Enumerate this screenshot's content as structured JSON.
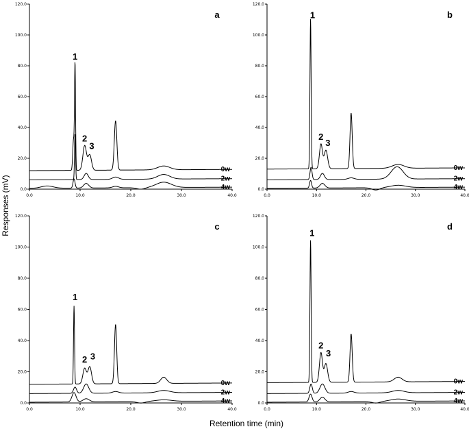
{
  "figure": {
    "ylabel": "Responses (mV)",
    "xlabel": "Retention time (min)"
  },
  "chart_data": [
    {
      "type": "line",
      "panel": "a",
      "xlim": [
        0,
        40
      ],
      "ylim": [
        0,
        120
      ],
      "x_ticks": [
        "0.0",
        "10.0",
        "20.0",
        "30.0",
        "40.0"
      ],
      "y_ticks": [
        "0.0",
        "20.0",
        "40.0",
        "60.0",
        "80.0",
        "100.0",
        "120.0"
      ],
      "series": [
        {
          "name": "0w",
          "baseline": 12,
          "peaks": [
            {
              "rt": 8.7,
              "h": 20,
              "w": 0.15
            },
            {
              "rt": 9.0,
              "h": 68,
              "w": 0.1
            },
            {
              "rt": 10.9,
              "h": 16,
              "w": 0.35
            },
            {
              "rt": 11.9,
              "h": 10,
              "w": 0.35
            },
            {
              "rt": 17.0,
              "h": 32,
              "w": 0.25
            },
            {
              "rt": 26.5,
              "h": 2.5,
              "w": 1.2
            }
          ]
        },
        {
          "name": "2w",
          "baseline": 6,
          "peaks": [
            {
              "rt": 9.0,
              "h": 30,
              "w": 0.1
            },
            {
              "rt": 11.2,
              "h": 4,
              "w": 0.4
            },
            {
              "rt": 17.0,
              "h": 1.5,
              "w": 0.6
            },
            {
              "rt": 26.5,
              "h": 3,
              "w": 1.2
            }
          ]
        },
        {
          "name": "4w",
          "baseline": 0.5,
          "peaks": [
            {
              "rt": 3.5,
              "h": 1.5,
              "w": 1.2
            },
            {
              "rt": 8.8,
              "h": 6,
              "w": 0.2
            },
            {
              "rt": 11.2,
              "h": 3,
              "w": 0.5
            },
            {
              "rt": 17.0,
              "h": 1,
              "w": 0.6
            },
            {
              "rt": 22.0,
              "h": -1,
              "w": 0.8
            },
            {
              "rt": 26.5,
              "h": 3.5,
              "w": 1.5
            }
          ]
        }
      ],
      "peak_labels": [
        {
          "text": "1",
          "rt": 9.0,
          "y": 84
        },
        {
          "text": "2",
          "rt": 10.9,
          "y": 31
        },
        {
          "text": "3",
          "rt": 12.3,
          "y": 26
        }
      ]
    },
    {
      "type": "line",
      "panel": "b",
      "xlim": [
        0,
        40
      ],
      "ylim": [
        0,
        120
      ],
      "x_ticks": [
        "0.0",
        "10.0",
        "20.0",
        "30.0",
        "40.0"
      ],
      "y_ticks": [
        "0.0",
        "20.0",
        "40.0",
        "60.0",
        "80.0",
        "100.0",
        "120.0"
      ],
      "series": [
        {
          "name": "0w",
          "baseline": 13,
          "peaks": [
            {
              "rt": 8.8,
              "h": 97,
              "w": 0.12
            },
            {
              "rt": 10.9,
              "h": 16,
              "w": 0.3
            },
            {
              "rt": 11.9,
              "h": 12,
              "w": 0.35
            },
            {
              "rt": 17.0,
              "h": 36,
              "w": 0.22
            },
            {
              "rt": 26.5,
              "h": 2.5,
              "w": 1.2
            }
          ]
        },
        {
          "name": "2w",
          "baseline": 6,
          "peaks": [
            {
              "rt": 8.9,
              "h": 8,
              "w": 0.2
            },
            {
              "rt": 11.2,
              "h": 4,
              "w": 0.4
            },
            {
              "rt": 17.0,
              "h": 1,
              "w": 0.6
            },
            {
              "rt": 26.3,
              "h": 8,
              "w": 1.2
            }
          ]
        },
        {
          "name": "4w",
          "baseline": 0.5,
          "peaks": [
            {
              "rt": 8.8,
              "h": 5,
              "w": 0.2
            },
            {
              "rt": 11.2,
              "h": 3,
              "w": 0.5
            },
            {
              "rt": 22.0,
              "h": -1.5,
              "w": 0.8
            },
            {
              "rt": 26.5,
              "h": 1.5,
              "w": 1.5
            }
          ]
        }
      ],
      "peak_labels": [
        {
          "text": "1",
          "rt": 9.2,
          "y": 111
        },
        {
          "text": "2",
          "rt": 10.9,
          "y": 32
        },
        {
          "text": "3",
          "rt": 12.3,
          "y": 28
        }
      ]
    },
    {
      "type": "line",
      "panel": "c",
      "xlim": [
        0,
        40
      ],
      "ylim": [
        0,
        120
      ],
      "x_ticks": [
        "0.0",
        "10.0",
        "20.0",
        "30.0",
        "40.0"
      ],
      "y_ticks": [
        "0.0",
        "20.0",
        "40.0",
        "60.0",
        "80.0",
        "100.0",
        "120.0"
      ],
      "series": [
        {
          "name": "0w",
          "baseline": 12,
          "peaks": [
            {
              "rt": 8.8,
              "h": 50,
              "w": 0.1
            },
            {
              "rt": 10.9,
              "h": 10,
              "w": 0.35
            },
            {
              "rt": 11.9,
              "h": 11,
              "w": 0.35
            },
            {
              "rt": 17.0,
              "h": 38,
              "w": 0.22
            },
            {
              "rt": 26.5,
              "h": 4,
              "w": 0.6
            }
          ]
        },
        {
          "name": "2w",
          "baseline": 6,
          "peaks": [
            {
              "rt": 9.0,
              "h": 4,
              "w": 0.3
            },
            {
              "rt": 11.2,
              "h": 6,
              "w": 0.5
            },
            {
              "rt": 17.0,
              "h": 1,
              "w": 0.6
            },
            {
              "rt": 26.5,
              "h": 1.5,
              "w": 1.2
            }
          ]
        },
        {
          "name": "4w",
          "baseline": 0.5,
          "peaks": [
            {
              "rt": 8.8,
              "h": 6,
              "w": 0.4
            },
            {
              "rt": 11.2,
              "h": 2,
              "w": 0.6
            },
            {
              "rt": 22.0,
              "h": -1,
              "w": 0.8
            },
            {
              "rt": 26.5,
              "h": 1,
              "w": 1.5
            }
          ]
        }
      ],
      "peak_labels": [
        {
          "text": "1",
          "rt": 9.0,
          "y": 66
        },
        {
          "text": "2",
          "rt": 10.9,
          "y": 26
        },
        {
          "text": "3",
          "rt": 12.5,
          "y": 28
        }
      ]
    },
    {
      "type": "line",
      "panel": "d",
      "xlim": [
        0,
        40
      ],
      "ylim": [
        0,
        120
      ],
      "x_ticks": [
        "0.0",
        "10.0",
        "20.0",
        "30.0",
        "40.0"
      ],
      "y_ticks": [
        "0.0",
        "20.0",
        "40.0",
        "60.0",
        "80.0",
        "100.0",
        "120.0"
      ],
      "series": [
        {
          "name": "0w",
          "baseline": 13,
          "peaks": [
            {
              "rt": 8.8,
              "h": 91,
              "w": 0.12
            },
            {
              "rt": 10.9,
              "h": 19,
              "w": 0.3
            },
            {
              "rt": 11.9,
              "h": 12,
              "w": 0.35
            },
            {
              "rt": 17.0,
              "h": 31,
              "w": 0.22
            },
            {
              "rt": 26.5,
              "h": 3,
              "w": 0.8
            }
          ]
        },
        {
          "name": "2w",
          "baseline": 6,
          "peaks": [
            {
              "rt": 8.9,
              "h": 6,
              "w": 0.25
            },
            {
              "rt": 11.2,
              "h": 6,
              "w": 0.5
            },
            {
              "rt": 17.0,
              "h": 1,
              "w": 0.6
            },
            {
              "rt": 26.5,
              "h": 1.5,
              "w": 1.2
            }
          ]
        },
        {
          "name": "4w",
          "baseline": 0.5,
          "peaks": [
            {
              "rt": 8.8,
              "h": 5,
              "w": 0.3
            },
            {
              "rt": 11.2,
              "h": 3,
              "w": 0.5
            },
            {
              "rt": 22.0,
              "h": -1,
              "w": 0.8
            },
            {
              "rt": 26.5,
              "h": 1.5,
              "w": 1.5
            }
          ]
        }
      ],
      "peak_labels": [
        {
          "text": "1",
          "rt": 9.1,
          "y": 107
        },
        {
          "text": "2",
          "rt": 10.9,
          "y": 35
        },
        {
          "text": "3",
          "rt": 12.4,
          "y": 30
        }
      ]
    }
  ]
}
